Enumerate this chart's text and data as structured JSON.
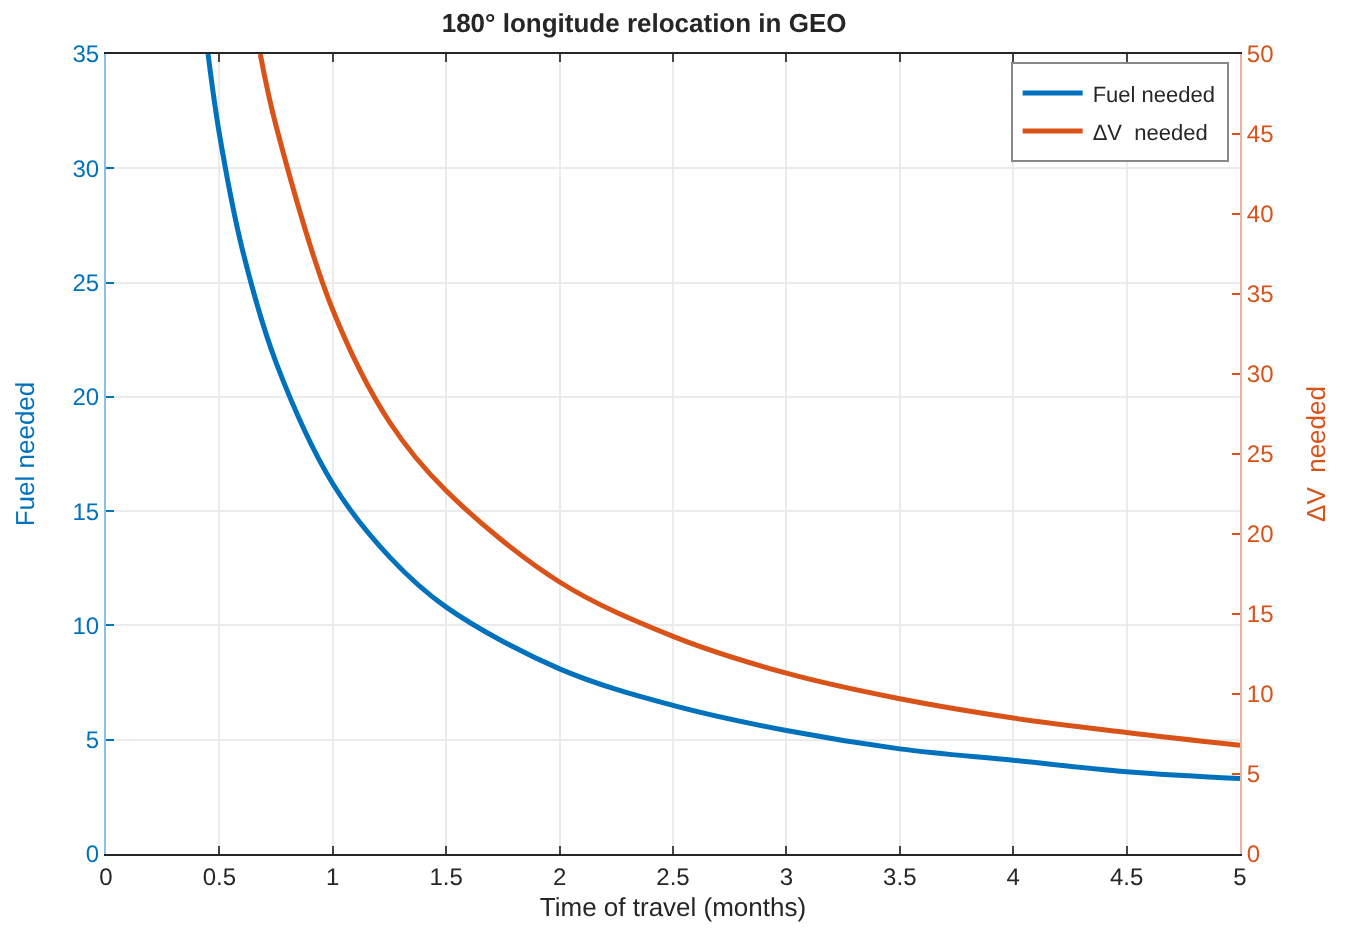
{
  "chart_data": {
    "type": "line",
    "title": "180° longitude relocation in GEO",
    "xlabel": "Time of travel (months)",
    "ylabel": "Fuel needed",
    "y2label": "ΔV  needed",
    "series": [
      {
        "name": "Fuel needed",
        "color": "#0072bd",
        "x": [
          0.45,
          0.5,
          0.6,
          0.75,
          1,
          1.25,
          1.5,
          2,
          2.5,
          3,
          3.5,
          4,
          4.5,
          5
        ],
        "values": [
          35,
          31.5,
          26.5,
          21.5,
          16.2,
          13,
          10.8,
          8.1,
          6.5,
          5.4,
          4.6,
          4.1,
          3.6,
          3.3
        ]
      },
      {
        "name": "ΔV  needed",
        "color": "#d95319",
        "axis": "y2",
        "x": [
          0.68,
          0.75,
          1,
          1.25,
          1.5,
          2,
          2.5,
          3,
          3.5,
          4,
          4.5,
          5
        ],
        "values": [
          50,
          45.5,
          34,
          27,
          22.7,
          17,
          13.6,
          11.3,
          9.7,
          8.5,
          7.6,
          6.8
        ]
      }
    ],
    "xlim": [
      0,
      5
    ],
    "xticks": [
      0,
      0.5,
      1,
      1.5,
      2,
      2.5,
      3,
      3.5,
      4,
      4.5,
      5
    ],
    "ylim": [
      0,
      35
    ],
    "yticks": [
      0,
      5,
      10,
      15,
      20,
      25,
      30,
      35
    ],
    "y2lim": [
      0,
      50
    ],
    "y2ticks": [
      0,
      5,
      10,
      15,
      20,
      25,
      30,
      35,
      40,
      45,
      50
    ],
    "grid": true,
    "legend": "top right",
    "line_style": "solid",
    "marker": "none"
  }
}
